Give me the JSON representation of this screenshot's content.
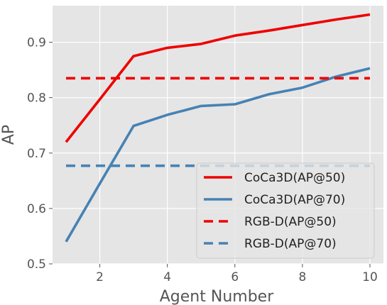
{
  "chart_data": {
    "type": "line",
    "title": "",
    "xlabel": "Agent Number",
    "ylabel": "AP",
    "xlim": [
      0.6,
      10.4
    ],
    "ylim": [
      0.5,
      0.966
    ],
    "xticks": [
      2,
      4,
      6,
      8,
      10
    ],
    "yticks": [
      0.5,
      0.6,
      0.7,
      0.8,
      0.9
    ],
    "xtick_labels": [
      "2",
      "4",
      "6",
      "8",
      "10"
    ],
    "ytick_labels": [
      "0.5",
      "0.6",
      "0.7",
      "0.8",
      "0.9"
    ],
    "grid": true,
    "legend_position": "lower-right",
    "series": [
      {
        "name": "CoCa3D(AP@50)",
        "color": "#ee0000",
        "style": "solid",
        "x": [
          1,
          2,
          3,
          4,
          5,
          6,
          7,
          8,
          9,
          10
        ],
        "y": [
          0.72,
          0.797,
          0.875,
          0.89,
          0.897,
          0.912,
          0.921,
          0.931,
          0.941,
          0.95
        ]
      },
      {
        "name": "CoCa3D(AP@70)",
        "color": "#4682b4",
        "style": "solid",
        "x": [
          1,
          2,
          3,
          4,
          5,
          6,
          7,
          8,
          9,
          10
        ],
        "y": [
          0.54,
          0.645,
          0.749,
          0.769,
          0.785,
          0.788,
          0.806,
          0.818,
          0.838,
          0.853
        ]
      },
      {
        "name": "RGB-D(AP@50)",
        "color": "#ee0000",
        "style": "dashed",
        "x": [
          1,
          10
        ],
        "y": [
          0.835,
          0.835
        ]
      },
      {
        "name": "RGB-D(AP@70)",
        "color": "#4682b4",
        "style": "dashed",
        "x": [
          1,
          10
        ],
        "y": [
          0.677,
          0.677
        ]
      }
    ]
  }
}
